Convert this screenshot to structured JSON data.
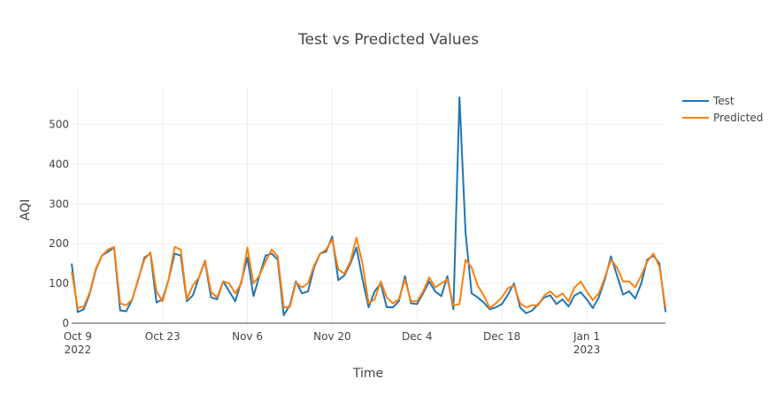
{
  "chart_data": {
    "type": "line",
    "title": "Test vs Predicted Values",
    "xlabel": "Time",
    "ylabel": "AQI",
    "x_start": "2022-10-08",
    "x_step_days": 1,
    "xlim": [
      "2022-10-08",
      "2023-01-14"
    ],
    "ylim": [
      0,
      590
    ],
    "yticks": [
      0,
      100,
      200,
      300,
      400,
      500
    ],
    "xticks": [
      {
        "date": "2022-10-09",
        "label": "Oct 9",
        "sublabel": "2022"
      },
      {
        "date": "2022-10-23",
        "label": "Oct 23",
        "sublabel": ""
      },
      {
        "date": "2022-11-06",
        "label": "Nov 6",
        "sublabel": ""
      },
      {
        "date": "2022-11-20",
        "label": "Nov 20",
        "sublabel": ""
      },
      {
        "date": "2022-12-04",
        "label": "Dec 4",
        "sublabel": ""
      },
      {
        "date": "2022-12-18",
        "label": "Dec 18",
        "sublabel": ""
      },
      {
        "date": "2023-01-01",
        "label": "Jan 1",
        "sublabel": "2023"
      }
    ],
    "grid": true,
    "legend_position": "top-right",
    "series": [
      {
        "name": "Test",
        "color": "#1f77b4",
        "values": [
          150,
          28,
          35,
          75,
          135,
          170,
          180,
          190,
          32,
          30,
          60,
          110,
          165,
          175,
          52,
          60,
          110,
          175,
          170,
          55,
          70,
          115,
          155,
          65,
          60,
          105,
          80,
          55,
          105,
          165,
          68,
          120,
          170,
          175,
          160,
          20,
          45,
          105,
          75,
          80,
          140,
          175,
          180,
          218,
          108,
          120,
          150,
          190,
          110,
          40,
          80,
          100,
          40,
          40,
          55,
          118,
          50,
          48,
          75,
          105,
          80,
          68,
          118,
          35,
          568,
          228,
          75,
          65,
          52,
          35,
          40,
          48,
          72,
          100,
          40,
          25,
          32,
          48,
          65,
          70,
          48,
          60,
          42,
          70,
          78,
          60,
          38,
          65,
          110,
          168,
          120,
          72,
          80,
          62,
          100,
          160,
          170,
          150,
          28
        ]
      },
      {
        "name": "Predicted",
        "color": "#ff7f0e",
        "values": [
          130,
          38,
          42,
          78,
          138,
          170,
          185,
          192,
          50,
          45,
          60,
          112,
          160,
          178,
          80,
          55,
          110,
          192,
          185,
          60,
          95,
          115,
          158,
          78,
          65,
          105,
          100,
          75,
          100,
          190,
          100,
          120,
          155,
          185,
          168,
          40,
          40,
          102,
          90,
          100,
          145,
          175,
          185,
          210,
          135,
          125,
          155,
          215,
          150,
          50,
          60,
          105,
          65,
          50,
          60,
          110,
          55,
          55,
          80,
          115,
          90,
          100,
          110,
          45,
          48,
          160,
          140,
          95,
          70,
          38,
          50,
          65,
          88,
          95,
          50,
          40,
          45,
          45,
          70,
          80,
          65,
          75,
          55,
          90,
          105,
          80,
          58,
          75,
          115,
          160,
          140,
          105,
          105,
          90,
          120,
          155,
          175,
          142,
          40
        ]
      }
    ]
  }
}
